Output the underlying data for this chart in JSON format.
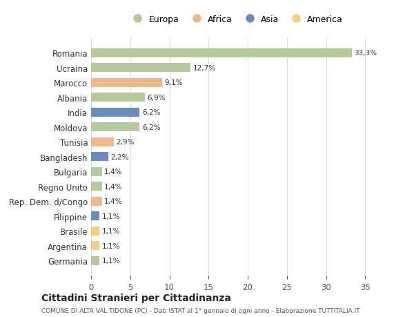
{
  "countries": [
    "Romania",
    "Ucraina",
    "Marocco",
    "Albania",
    "India",
    "Moldova",
    "Tunisia",
    "Bangladesh",
    "Bulgaria",
    "Regno Unito",
    "Rep. Dem. d/Congo",
    "Filippine",
    "Brasile",
    "Argentina",
    "Germania"
  ],
  "values": [
    33.3,
    12.7,
    9.1,
    6.9,
    6.2,
    6.2,
    2.9,
    2.2,
    1.4,
    1.4,
    1.4,
    1.1,
    1.1,
    1.1,
    1.1
  ],
  "labels": [
    "33,3%",
    "12,7%",
    "9,1%",
    "6,9%",
    "6,2%",
    "6,2%",
    "2,9%",
    "2,2%",
    "1,4%",
    "1,4%",
    "1,4%",
    "1,1%",
    "1,1%",
    "1,1%",
    "1,1%"
  ],
  "continents": [
    "Europa",
    "Europa",
    "Africa",
    "Europa",
    "Asia",
    "Europa",
    "Africa",
    "Asia",
    "Europa",
    "Europa",
    "Africa",
    "Asia",
    "America",
    "America",
    "Europa"
  ],
  "colors": {
    "Europa": "#b5c99a",
    "Africa": "#f0b989",
    "Asia": "#6b8cba",
    "America": "#f0d080"
  },
  "legend_order": [
    "Europa",
    "Africa",
    "Asia",
    "America"
  ],
  "title": "Cittadini Stranieri per Cittadinanza",
  "subtitle": "COMUNE DI ALTA VAL TIDONE (PC) - Dati ISTAT al 1° gennaio di ogni anno - Elaborazione TUTTITALIA.IT",
  "xlim": [
    0,
    37
  ],
  "xticks": [
    0,
    5,
    10,
    15,
    20,
    25,
    30,
    35
  ],
  "bg_color": "#ffffff",
  "grid_color": "#dddddd"
}
